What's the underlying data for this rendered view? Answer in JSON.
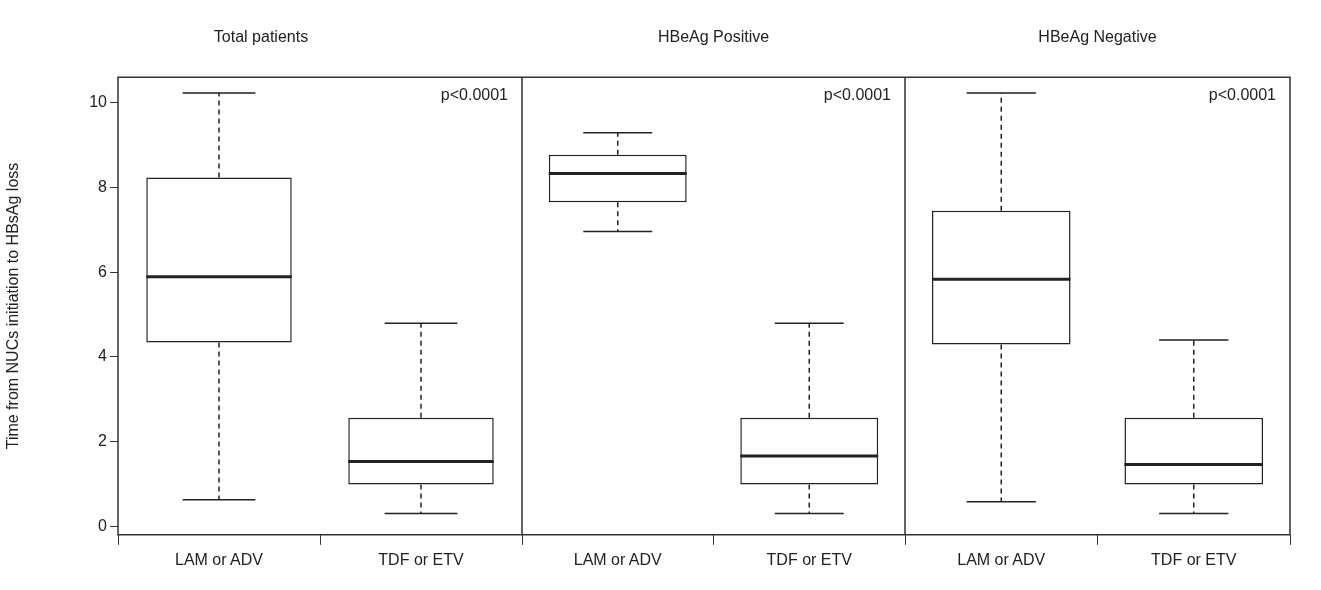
{
  "chart_data": [
    {
      "type": "box",
      "title": "Total patients",
      "ylabel": "Time from NUCs initiation to HBsAg loss",
      "categories": [
        "LAM or ADV",
        "TDF or ETV"
      ],
      "ylim": [
        -0.2,
        10.6
      ],
      "yticks": [
        0,
        2,
        4,
        6,
        8,
        10
      ],
      "annotations": [
        "p<0.0001"
      ],
      "series": [
        {
          "color": "#222222",
          "boxes": [
            {
              "low": 0.63,
              "q1": 4.34,
              "median": 5.89,
              "q3": 8.23,
              "high": 10.23
            },
            {
              "low": 0.3,
              "q1": 0.99,
              "median": 1.53,
              "q3": 2.56,
              "high": 4.79
            }
          ]
        }
      ]
    },
    {
      "type": "box",
      "title": "HBeAg Positive",
      "categories": [
        "LAM or ADV",
        "TDF or ETV"
      ],
      "ylim": [
        -0.2,
        10.6
      ],
      "yticks": [
        0,
        2,
        4,
        6,
        8,
        10
      ],
      "tick_labels": "x",
      "annotations": [
        "p<0.0001"
      ],
      "series": [
        {
          "color": "#222222",
          "boxes": [
            {
              "low": 6.96,
              "q1": 7.65,
              "median": 8.33,
              "q3": 8.77,
              "high": 9.29
            },
            {
              "low": 0.3,
              "q1": 0.99,
              "median": 1.66,
              "q3": 2.56,
              "high": 4.79
            }
          ]
        }
      ]
    },
    {
      "type": "box",
      "title": "HBeAg Negative",
      "categories": [
        "LAM or ADV",
        "TDF or ETV"
      ],
      "ylim": [
        -0.2,
        10.6
      ],
      "yticks": [
        0,
        2,
        4,
        6,
        8,
        10
      ],
      "tick_labels": "x",
      "annotations": [
        "p<0.0001"
      ],
      "series": [
        {
          "color": "#222222",
          "boxes": [
            {
              "low": 0.58,
              "q1": 4.29,
              "median": 5.83,
              "q3": 7.45,
              "high": 10.23
            },
            {
              "low": 0.3,
              "q1": 0.99,
              "median": 1.46,
              "q3": 2.56,
              "high": 4.4
            }
          ]
        }
      ]
    }
  ]
}
